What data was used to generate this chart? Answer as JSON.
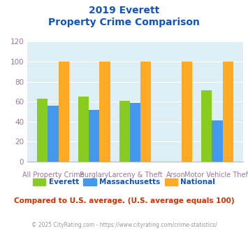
{
  "title_line1": "2019 Everett",
  "title_line2": "Property Crime Comparison",
  "categories": [
    "All Property Crime",
    "Burglary",
    "Larceny & Theft",
    "Arson",
    "Motor Vehicle Theft"
  ],
  "top_labels": [
    "",
    "Burglary",
    "",
    "Arson",
    ""
  ],
  "bottom_labels": [
    "All Property Crime",
    "",
    "Larceny & Theft",
    "",
    "Motor Vehicle Theft"
  ],
  "everett": [
    63,
    65,
    61,
    0,
    71
  ],
  "massachusetts": [
    56,
    52,
    59,
    0,
    41
  ],
  "national": [
    100,
    100,
    100,
    100,
    100
  ],
  "everett_color": "#88cc22",
  "massachusetts_color": "#4499ee",
  "national_color": "#ffaa22",
  "bg_color": "#ddeef5",
  "title_color": "#1155bb",
  "ytick_color": "#997799",
  "xtick_color": "#997799",
  "legend_color": "#1155bb",
  "footnote_color": "#cc3300",
  "copyright_color": "#999999",
  "grid_color": "#ffffff",
  "ylim": [
    0,
    120
  ],
  "yticks": [
    0,
    20,
    40,
    60,
    80,
    100,
    120
  ],
  "footnote": "Compared to U.S. average. (U.S. average equals 100)",
  "copyright": "© 2025 CityRating.com - https://www.cityrating.com/crime-statistics/"
}
